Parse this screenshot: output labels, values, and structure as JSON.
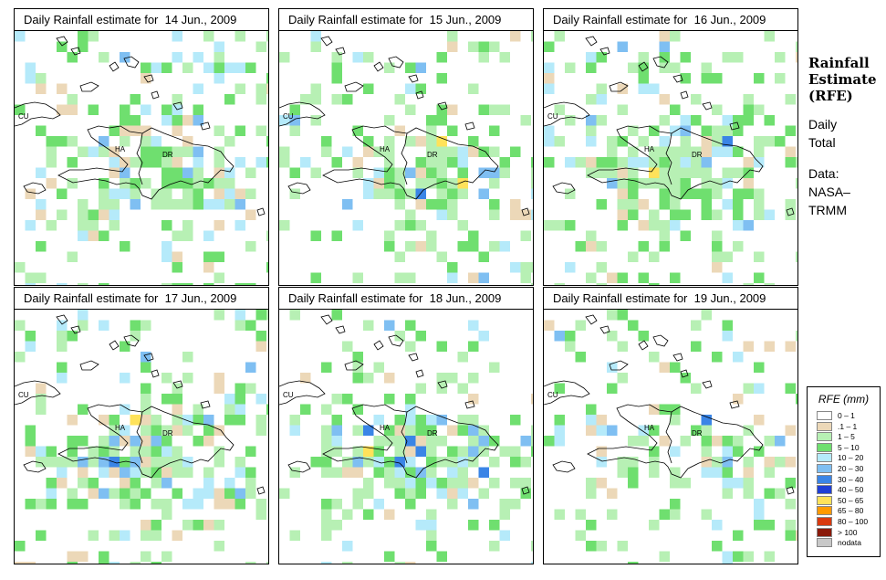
{
  "panels": [
    {
      "title": "Daily Rainfall estimate for  14 Jun., 2009",
      "seed": 14,
      "intensity": 0.9
    },
    {
      "title": "Daily Rainfall estimate for  15 Jun., 2009",
      "seed": 15,
      "intensity": 1.0
    },
    {
      "title": "Daily Rainfall estimate for  16 Jun., 2009",
      "seed": 16,
      "intensity": 1.1
    },
    {
      "title": "Daily Rainfall estimate for  17 Jun., 2009",
      "seed": 17,
      "intensity": 1.2
    },
    {
      "title": "Daily Rainfall estimate for  18 Jun., 2009",
      "seed": 18,
      "intensity": 1.2
    },
    {
      "title": "Daily Rainfall estimate for  19 Jun., 2009",
      "seed": 19,
      "intensity": 0.55
    }
  ],
  "map_labels": {
    "cuba": "CU",
    "haiti": "HA",
    "dominican_republic": "DR"
  },
  "side_info": {
    "title_lines": [
      "Rainfall",
      "Estimate",
      "(RFE)"
    ],
    "period_lines": [
      "Daily",
      "Total"
    ],
    "source_lines": [
      "Data:",
      "NASA–",
      "TRMM"
    ]
  },
  "legend": {
    "title": "RFE (mm)",
    "items": [
      {
        "label": "0 – 1",
        "color": "#ffffff"
      },
      {
        "label": ".1 – 1",
        "color": "#ecd8b8"
      },
      {
        "label": "1 – 5",
        "color": "#b7f0b4"
      },
      {
        "label": "5 – 10",
        "color": "#6fdf6f"
      },
      {
        "label": "10 – 20",
        "color": "#b5eafa"
      },
      {
        "label": "20 – 30",
        "color": "#7fbff2"
      },
      {
        "label": "30 – 40",
        "color": "#3a85e6"
      },
      {
        "label": "40 – 50",
        "color": "#1f3fd6"
      },
      {
        "label": "50 – 65",
        "color": "#ffe25a"
      },
      {
        "label": "65 – 80",
        "color": "#ff9a00"
      },
      {
        "label": "80 – 100",
        "color": "#d93a0f"
      },
      {
        "label": "> 100",
        "color": "#8a1a0a"
      },
      {
        "label": "nodata",
        "color": "#c8c8c8"
      }
    ]
  }
}
